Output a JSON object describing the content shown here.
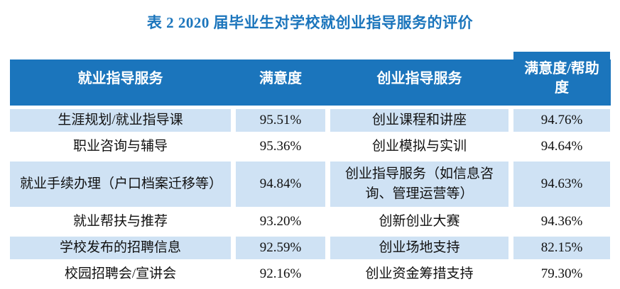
{
  "title": "表 2  2020 届毕业生对学校就创业指导服务的评价",
  "colors": {
    "header_bg": "#1b75bc",
    "shaded_row_bg": "#cfe2f4",
    "title_color": "#1b75bc",
    "header_text": "#ffffff",
    "body_text": "#111111"
  },
  "table": {
    "headers": [
      "就业指导服务",
      "满意度",
      "创业指导服务",
      "满意度/帮助度"
    ],
    "rows": [
      [
        "生涯规划/就业指导课",
        "95.51%",
        "创业课程和讲座",
        "94.76%"
      ],
      [
        "职业咨询与辅导",
        "95.36%",
        "创业模拟与实训",
        "94.64%"
      ],
      [
        "就业手续办理（户口档案迁移等）",
        "94.84%",
        "创业指导服务（如信息咨询、管理运营等）",
        "94.63%"
      ],
      [
        "就业帮扶与推荐",
        "93.20%",
        "创新创业大赛",
        "94.36%"
      ],
      [
        "学校发布的招聘信息",
        "92.59%",
        "创业场地支持",
        "82.15%"
      ],
      [
        "校园招聘会/宣讲会",
        "92.16%",
        "创业资金筹措支持",
        "79.30%"
      ]
    ]
  }
}
